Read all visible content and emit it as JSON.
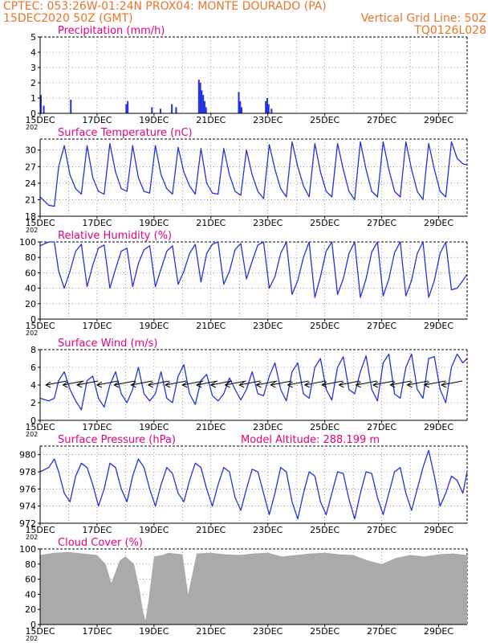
{
  "header": {
    "line1_left": "CPTEC:   053:26W-01:24N   PROX04: MONTE DOURADO (PA)",
    "line2_left": "15DEC2020 50Z (GMT)",
    "line2_right": "Vertical Grid Line: 50Z",
    "line3_right": "TQ0126L028"
  },
  "colors": {
    "header": "#e8742a",
    "title": "#e6007e",
    "series": "#2233dd",
    "cloud": "#aaaaaa"
  },
  "x_ticks": [
    "15DEC",
    "17DEC",
    "19DEC",
    "21DEC",
    "23DEC",
    "25DEC",
    "27DEC",
    "29DEC"
  ],
  "x_tick_fragment": "202",
  "chart_data": [
    {
      "type": "bar",
      "title": "Precipitation (mm/h)",
      "ylim": [
        0,
        5
      ],
      "yticks": [
        "0",
        "1",
        "2",
        "3",
        "4",
        "5"
      ],
      "x": [
        0.0,
        0.1,
        1.05,
        3.0,
        3.05,
        3.9,
        4.2,
        4.6,
        4.75,
        5.55,
        5.6,
        5.65,
        5.7,
        5.75,
        5.8,
        6.95,
        7.0,
        7.05,
        7.9,
        7.95,
        8.0,
        8.1
      ],
      "values": [
        1.2,
        0.5,
        0.9,
        0.6,
        0.8,
        0.4,
        0.3,
        0.6,
        0.4,
        2.2,
        2.0,
        1.5,
        1.2,
        0.8,
        0.4,
        1.4,
        0.8,
        0.4,
        0.8,
        1.0,
        0.6,
        0.3
      ]
    },
    {
      "type": "line",
      "title": "Surface Temperature (nC)",
      "ylim": [
        18,
        32
      ],
      "yticks": [
        "18",
        "21",
        "24",
        "27",
        "30"
      ],
      "x": [
        0.0,
        0.3,
        0.5,
        0.65,
        0.85,
        1.05,
        1.25,
        1.45,
        1.65,
        1.85,
        2.05,
        2.25,
        2.45,
        2.65,
        2.85,
        3.05,
        3.25,
        3.45,
        3.65,
        3.85,
        4.05,
        4.25,
        4.45,
        4.65,
        4.85,
        5.05,
        5.25,
        5.45,
        5.65,
        5.85,
        6.05,
        6.25,
        6.45,
        6.65,
        6.85,
        7.05,
        7.25,
        7.45,
        7.65,
        7.85,
        8.05,
        8.25,
        8.45,
        8.65,
        8.85,
        9.05,
        9.25,
        9.45,
        9.65,
        9.85,
        10.05,
        10.25,
        10.45,
        10.65,
        10.85,
        11.05,
        11.25,
        11.45,
        11.65,
        11.85,
        12.05,
        12.25,
        12.45,
        12.65,
        12.85,
        13.05,
        13.25,
        13.45,
        13.65,
        13.85,
        14.05,
        14.25,
        14.45,
        14.65,
        14.85,
        15.0
      ],
      "values": [
        21.5,
        20.0,
        19.8,
        27.0,
        30.8,
        25.5,
        23.0,
        22.0,
        30.8,
        25.0,
        22.5,
        22.0,
        31.2,
        26.0,
        23.0,
        22.5,
        30.8,
        25.0,
        22.5,
        22.2,
        30.8,
        25.5,
        23.0,
        22.0,
        30.5,
        26.0,
        23.5,
        22.0,
        30.3,
        24.0,
        22.2,
        22.0,
        30.3,
        25.5,
        22.5,
        21.8,
        30.0,
        25.5,
        22.5,
        21.2,
        31.0,
        26.5,
        23.0,
        21.5,
        31.5,
        27.0,
        23.5,
        21.5,
        31.2,
        26.0,
        22.5,
        21.5,
        31.2,
        26.5,
        22.5,
        21.0,
        31.5,
        26.5,
        22.5,
        21.5,
        31.5,
        26.5,
        22.5,
        21.5,
        31.5,
        26.5,
        22.5,
        21.0,
        31.2,
        26.5,
        22.5,
        21.5,
        31.5,
        28.5,
        27.5,
        27.3
      ]
    },
    {
      "type": "line",
      "title": "Relative Humidity (%)",
      "ylim": [
        0,
        100
      ],
      "yticks": [
        "0",
        "20",
        "40",
        "60",
        "80",
        "100"
      ],
      "x": [
        0.0,
        0.3,
        0.5,
        0.65,
        0.85,
        1.05,
        1.25,
        1.45,
        1.65,
        1.85,
        2.05,
        2.25,
        2.45,
        2.65,
        2.85,
        3.05,
        3.25,
        3.45,
        3.65,
        3.85,
        4.05,
        4.25,
        4.45,
        4.65,
        4.85,
        5.05,
        5.25,
        5.45,
        5.65,
        5.85,
        6.05,
        6.25,
        6.45,
        6.65,
        6.85,
        7.05,
        7.25,
        7.45,
        7.65,
        7.85,
        8.05,
        8.25,
        8.45,
        8.65,
        8.85,
        9.05,
        9.25,
        9.45,
        9.65,
        9.85,
        10.05,
        10.25,
        10.45,
        10.65,
        10.85,
        11.05,
        11.25,
        11.45,
        11.65,
        11.85,
        12.05,
        12.25,
        12.45,
        12.65,
        12.85,
        13.05,
        13.25,
        13.45,
        13.65,
        13.85,
        14.05,
        14.25,
        14.45,
        14.65,
        14.85,
        15.0
      ],
      "values": [
        95,
        100,
        100,
        62,
        40,
        62,
        88,
        97,
        42,
        70,
        92,
        96,
        40,
        65,
        88,
        92,
        42,
        72,
        90,
        95,
        42,
        65,
        88,
        95,
        45,
        62,
        85,
        97,
        48,
        85,
        97,
        100,
        45,
        62,
        90,
        98,
        52,
        75,
        96,
        100,
        40,
        55,
        85,
        100,
        32,
        50,
        80,
        100,
        28,
        55,
        88,
        100,
        32,
        52,
        85,
        100,
        28,
        52,
        87,
        100,
        30,
        52,
        86,
        100,
        30,
        50,
        85,
        100,
        28,
        50,
        85,
        100,
        38,
        40,
        50,
        58
      ]
    },
    {
      "type": "line",
      "title": "Surface Wind (m/s)",
      "ylim": [
        0,
        8
      ],
      "yticks": [
        "0",
        "2",
        "4",
        "6",
        "8"
      ],
      "x": [
        0.0,
        0.3,
        0.5,
        0.65,
        0.85,
        1.05,
        1.25,
        1.45,
        1.65,
        1.85,
        2.05,
        2.25,
        2.45,
        2.65,
        2.85,
        3.05,
        3.25,
        3.45,
        3.65,
        3.85,
        4.05,
        4.25,
        4.45,
        4.65,
        4.85,
        5.05,
        5.25,
        5.45,
        5.65,
        5.85,
        6.05,
        6.25,
        6.45,
        6.65,
        6.85,
        7.05,
        7.25,
        7.45,
        7.65,
        7.85,
        8.05,
        8.25,
        8.45,
        8.65,
        8.85,
        9.05,
        9.25,
        9.45,
        9.65,
        9.85,
        10.05,
        10.25,
        10.45,
        10.65,
        10.85,
        11.05,
        11.25,
        11.45,
        11.65,
        11.85,
        12.05,
        12.25,
        12.45,
        12.65,
        12.85,
        13.05,
        13.25,
        13.45,
        13.65,
        13.85,
        14.05,
        14.25,
        14.45,
        14.65,
        14.85,
        15.0
      ],
      "values": [
        2.5,
        2.2,
        2.5,
        4.5,
        5.5,
        3.5,
        2.2,
        1.2,
        4.5,
        5.0,
        2.5,
        1.5,
        4.0,
        5.5,
        3.0,
        2.0,
        3.5,
        6.0,
        3.0,
        2.2,
        3.0,
        5.5,
        2.5,
        2.0,
        5.0,
        6.3,
        3.0,
        1.8,
        4.5,
        5.2,
        2.8,
        2.2,
        3.0,
        4.8,
        3.5,
        2.3,
        3.5,
        5.5,
        3.0,
        2.8,
        5.0,
        6.5,
        3.5,
        2.2,
        5.5,
        6.5,
        3.0,
        2.5,
        6.0,
        7.0,
        3.5,
        2.3,
        6.0,
        7.2,
        3.5,
        3.0,
        5.5,
        7.3,
        3.5,
        2.2,
        6.5,
        7.5,
        3.0,
        2.5,
        6.0,
        7.5,
        3.5,
        2.5,
        7.0,
        7.2,
        3.5,
        2.0,
        6.0,
        7.5,
        6.5,
        7.0
      ],
      "vector_x": [
        0.2,
        0.8,
        1.3,
        2.0,
        2.6,
        3.2,
        3.8,
        4.4,
        5.0,
        5.5,
        6.0,
        6.5,
        7.0,
        7.6,
        8.1,
        8.7,
        9.3,
        9.9,
        10.5,
        11.1,
        11.7,
        12.3,
        12.9,
        13.5,
        14.1
      ]
    },
    {
      "type": "line",
      "title": "Surface Pressure (hPa)",
      "annotation": "Model Altitude: 288.199 m",
      "ylim": [
        972,
        981
      ],
      "yticks": [
        "972",
        "974",
        "976",
        "978",
        "980"
      ],
      "x": [
        0.0,
        0.3,
        0.5,
        0.65,
        0.85,
        1.05,
        1.25,
        1.45,
        1.65,
        1.85,
        2.05,
        2.25,
        2.45,
        2.65,
        2.85,
        3.05,
        3.25,
        3.45,
        3.65,
        3.85,
        4.05,
        4.25,
        4.45,
        4.65,
        4.85,
        5.05,
        5.25,
        5.45,
        5.65,
        5.85,
        6.05,
        6.25,
        6.45,
        6.65,
        6.85,
        7.05,
        7.25,
        7.45,
        7.65,
        7.85,
        8.05,
        8.25,
        8.45,
        8.65,
        8.85,
        9.05,
        9.25,
        9.45,
        9.65,
        9.85,
        10.05,
        10.25,
        10.45,
        10.65,
        10.85,
        11.05,
        11.25,
        11.45,
        11.65,
        11.85,
        12.05,
        12.25,
        12.45,
        12.65,
        12.85,
        13.05,
        13.25,
        13.45,
        13.65,
        13.85,
        14.05,
        14.25,
        14.45,
        14.65,
        14.85,
        15.0
      ],
      "values": [
        978.0,
        978.5,
        979.5,
        978.0,
        975.5,
        974.5,
        977.5,
        979.0,
        978.5,
        976.5,
        974.0,
        976.0,
        979.0,
        978.5,
        976.0,
        974.5,
        977.5,
        979.5,
        978.5,
        976.0,
        974.0,
        976.5,
        978.5,
        977.8,
        975.5,
        974.5,
        977.0,
        979.0,
        978.5,
        976.0,
        974.0,
        976.5,
        978.5,
        978.0,
        975.0,
        973.5,
        976.0,
        978.3,
        978.0,
        975.5,
        973.0,
        975.5,
        978.5,
        978.0,
        974.5,
        972.5,
        975.5,
        978.0,
        977.5,
        974.5,
        973.0,
        975.5,
        978.0,
        977.8,
        974.8,
        972.5,
        975.5,
        978.0,
        977.8,
        975.0,
        973.0,
        975.5,
        978.0,
        978.5,
        975.5,
        973.5,
        976.0,
        978.5,
        980.5,
        977.5,
        974.0,
        975.5,
        977.5,
        977.0,
        975.5,
        978.0
      ]
    },
    {
      "type": "area",
      "title": "Cloud Cover (%)",
      "ylim": [
        0,
        100
      ],
      "yticks": [
        "0",
        "20",
        "40",
        "60",
        "80",
        "100"
      ],
      "x": [
        0,
        0.5,
        1.0,
        1.5,
        2.0,
        2.3,
        2.5,
        2.8,
        3.0,
        3.3,
        3.5,
        3.6,
        3.7,
        3.8,
        4.0,
        4.3,
        4.5,
        5.0,
        5.2,
        5.5,
        6.0,
        6.5,
        7.0,
        7.5,
        8.0,
        8.5,
        9.0,
        9.5,
        10.0,
        10.5,
        11.0,
        11.5,
        12.0,
        12.5,
        13.0,
        13.5,
        14.0,
        14.5,
        15.0
      ],
      "values": [
        92,
        95,
        96,
        94,
        92,
        80,
        55,
        85,
        90,
        80,
        45,
        20,
        5,
        30,
        90,
        92,
        95,
        93,
        40,
        94,
        95,
        93,
        92,
        94,
        95,
        90,
        92,
        94,
        95,
        93,
        92,
        85,
        80,
        88,
        92,
        90,
        93,
        94,
        92
      ]
    }
  ]
}
